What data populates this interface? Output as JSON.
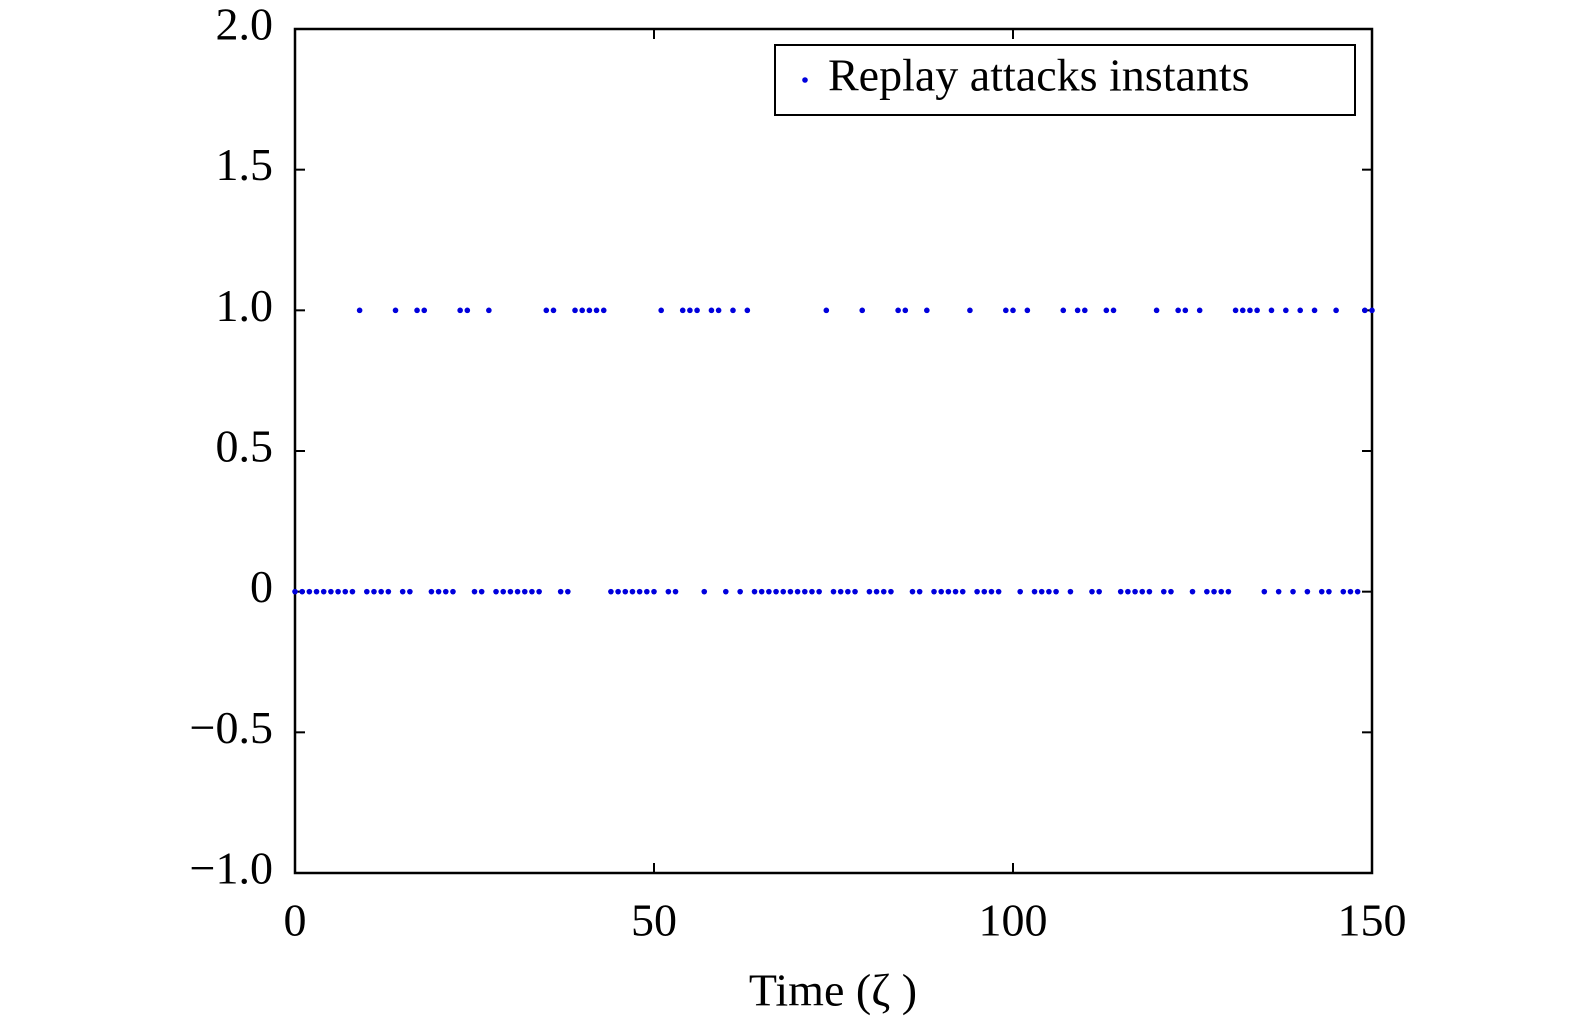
{
  "chart_data": {
    "type": "scatter",
    "xlabel": "Time (ζ )",
    "x": [
      0,
      1,
      2,
      3,
      4,
      5,
      6,
      7,
      8,
      9,
      10,
      11,
      12,
      13,
      14,
      15,
      16,
      17,
      18,
      19,
      20,
      21,
      22,
      23,
      24,
      25,
      26,
      27,
      28,
      29,
      30,
      31,
      32,
      33,
      34,
      35,
      36,
      37,
      38,
      39,
      40,
      41,
      42,
      43,
      44,
      45,
      46,
      47,
      48,
      49,
      50,
      51,
      52,
      53,
      54,
      55,
      56,
      57,
      58,
      59,
      60,
      61,
      62,
      63,
      64,
      65,
      66,
      67,
      68,
      69,
      70,
      71,
      72,
      73,
      74,
      75,
      76,
      77,
      78,
      79,
      80,
      81,
      82,
      83,
      84,
      85,
      86,
      87,
      88,
      89,
      90,
      91,
      92,
      93,
      94,
      95,
      96,
      97,
      98,
      99,
      100,
      101,
      102,
      103,
      104,
      105,
      106,
      107,
      108,
      109,
      110,
      111,
      112,
      113,
      114,
      115,
      116,
      117,
      118,
      119,
      120,
      121,
      122,
      123,
      124,
      125,
      126,
      127,
      128,
      129,
      130,
      131,
      132,
      133,
      134,
      135,
      136,
      137,
      138,
      139,
      140,
      141,
      142,
      143,
      144,
      145,
      146,
      147,
      148,
      149,
      150
    ],
    "series": [
      {
        "name": "Replay attacks instants",
        "color": "#0000dd",
        "values": [
          0,
          0,
          0,
          0,
          0,
          0,
          0,
          0,
          0,
          1,
          0,
          0,
          0,
          0,
          1,
          0,
          0,
          1,
          1,
          0,
          0,
          0,
          0,
          1,
          1,
          0,
          0,
          1,
          0,
          0,
          0,
          0,
          0,
          0,
          0,
          1,
          1,
          0,
          0,
          1,
          1,
          1,
          1,
          1,
          0,
          0,
          0,
          0,
          0,
          0,
          0,
          1,
          0,
          0,
          1,
          1,
          1,
          0,
          1,
          1,
          0,
          1,
          0,
          1,
          0,
          0,
          0,
          0,
          0,
          0,
          0,
          0,
          0,
          0,
          1,
          0,
          0,
          0,
          0,
          1,
          0,
          0,
          0,
          0,
          1,
          1,
          0,
          0,
          1,
          0,
          0,
          0,
          0,
          0,
          1,
          0,
          0,
          0,
          0,
          1,
          1,
          0,
          1,
          0,
          0,
          0,
          0,
          1,
          0,
          1,
          1,
          0,
          0,
          1,
          1,
          0,
          0,
          0,
          0,
          0,
          1,
          0,
          0,
          1,
          1,
          0,
          1,
          0,
          0,
          0,
          0,
          1,
          1,
          1,
          1,
          0,
          1,
          0,
          1,
          0,
          1,
          0,
          1,
          0,
          0,
          1,
          0,
          0,
          0,
          1,
          1
        ]
      }
    ],
    "xlim": [
      0,
      150
    ],
    "xticks": [
      0,
      50,
      100,
      150
    ],
    "ylim": [
      -1,
      2
    ],
    "yticks": [
      {
        "value": -1,
        "label": "−1.0"
      },
      {
        "value": -0.5,
        "label": "−0.5"
      },
      0,
      {
        "value": 0.5,
        "label": "0.5"
      },
      {
        "value": 1,
        "label": "1.0"
      },
      {
        "value": 1.5,
        "label": "1.5"
      },
      {
        "value": 2,
        "label": "2.0"
      }
    ],
    "legend": "upper right",
    "grid": false
  }
}
